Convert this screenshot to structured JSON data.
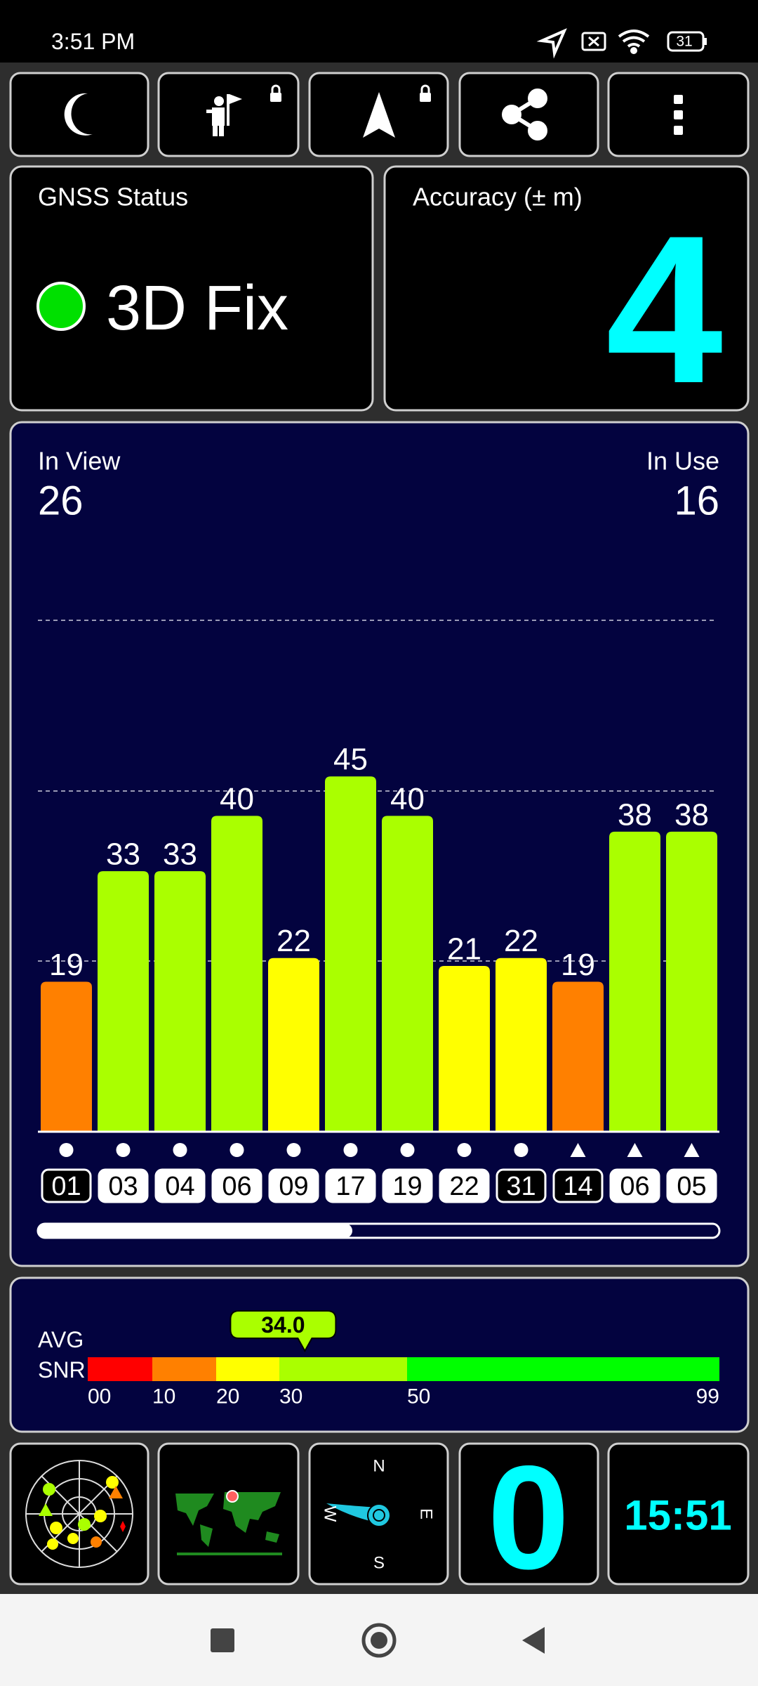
{
  "status_bar": {
    "time": "3:51 PM",
    "battery": "31"
  },
  "gnss_status": {
    "title": "GNSS Status",
    "value": "3D Fix"
  },
  "accuracy": {
    "title": "Accuracy (± m)",
    "value": "4"
  },
  "satellites": {
    "in_view_label": "In View",
    "in_view": 26,
    "in_use_label": "In Use",
    "in_use": 16,
    "bars": [
      {
        "id": "01",
        "snr": 19,
        "color": "#ff8000",
        "marker": "circle",
        "box": "outline"
      },
      {
        "id": "03",
        "snr": 33,
        "color": "#aaff00",
        "marker": "circle",
        "box": "filled"
      },
      {
        "id": "04",
        "snr": 33,
        "color": "#aaff00",
        "marker": "circle",
        "box": "filled"
      },
      {
        "id": "06",
        "snr": 40,
        "color": "#aaff00",
        "marker": "circle",
        "box": "filled"
      },
      {
        "id": "09",
        "snr": 22,
        "color": "#ffff00",
        "marker": "circle",
        "box": "filled"
      },
      {
        "id": "17",
        "snr": 45,
        "color": "#aaff00",
        "marker": "circle",
        "box": "filled"
      },
      {
        "id": "19",
        "snr": 40,
        "color": "#aaff00",
        "marker": "circle",
        "box": "filled"
      },
      {
        "id": "22",
        "snr": 21,
        "color": "#ffff00",
        "marker": "circle",
        "box": "filled"
      },
      {
        "id": "31",
        "snr": 22,
        "color": "#ffff00",
        "marker": "circle",
        "box": "outline"
      },
      {
        "id": "14",
        "snr": 19,
        "color": "#ff8000",
        "marker": "triangle",
        "box": "outline"
      },
      {
        "id": "06",
        "snr": 38,
        "color": "#aaff00",
        "marker": "triangle",
        "box": "filled"
      },
      {
        "id": "05",
        "snr": 38,
        "color": "#aaff00",
        "marker": "triangle",
        "box": "filled"
      }
    ]
  },
  "avg_snr": {
    "label_line_1": "AVG",
    "label_line_2": "SNR",
    "value": {
      "value": 34,
      "label": "34.0"
    },
    "ticks": [
      {
        "value": 0,
        "label": "00"
      },
      10,
      20,
      30,
      50,
      99
    ],
    "segment_colors": [
      "#ff0000",
      "#ff8000",
      "#ffff00",
      "#aaff00",
      "#00ff00"
    ]
  },
  "tiles": {
    "compass": {
      "north": "N",
      "east": "E",
      "south": "S",
      "west": "W"
    },
    "counter": "0",
    "clock": "15:51"
  }
}
